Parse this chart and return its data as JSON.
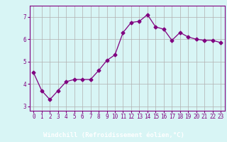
{
  "x": [
    0,
    1,
    2,
    3,
    4,
    5,
    6,
    7,
    8,
    9,
    10,
    11,
    12,
    13,
    14,
    15,
    16,
    17,
    18,
    19,
    20,
    21,
    22,
    23
  ],
  "y": [
    4.5,
    3.7,
    3.3,
    3.7,
    4.1,
    4.2,
    4.2,
    4.2,
    4.6,
    5.05,
    5.3,
    6.3,
    6.75,
    6.8,
    7.1,
    6.55,
    6.45,
    5.95,
    6.3,
    6.1,
    6.0,
    5.95,
    5.95,
    5.85
  ],
  "line_color": "#800080",
  "marker": "D",
  "marker_size": 2.5,
  "bg_color": "#d8f5f5",
  "bottom_bar_color": "#800080",
  "grid_color": "#b0b0b0",
  "xlabel": "Windchill (Refroidissement éolien,°C)",
  "xlabel_color": "#ffffff",
  "xlabel_fontsize": 6.5,
  "tick_color": "#800080",
  "tick_fontsize": 5.5,
  "ylim": [
    2.8,
    7.5
  ],
  "yticks": [
    3,
    4,
    5,
    6,
    7
  ],
  "spine_color": "#800080"
}
